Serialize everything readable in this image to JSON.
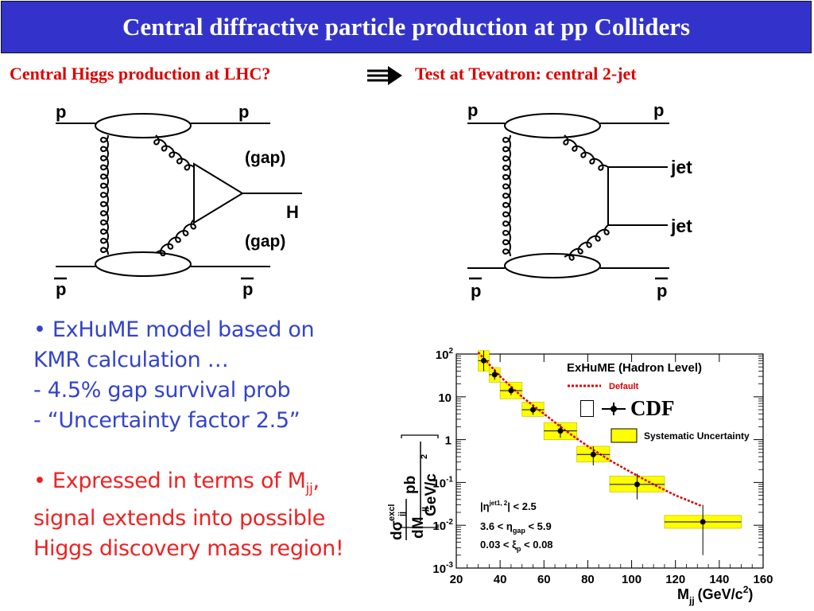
{
  "title": "Central diffractive particle production at pp Colliders",
  "headline_left": "Central Higgs production at LHC?",
  "headline_right": "Test at Tevatron: central 2-jet",
  "diagram_left": {
    "p_top_left": "p",
    "p_top_right": "p",
    "gap_top": "(gap)",
    "higgs": "H",
    "gap_bottom": "(gap)",
    "pbar_left": "p",
    "pbar_right": "p"
  },
  "diagram_right": {
    "p_top_left": "p",
    "p_top_right": "p",
    "jet1": "jet",
    "jet2": "jet",
    "pbar_left": "p",
    "pbar_right": "p"
  },
  "bullets": {
    "b1_l1": "• ExHuME model based on",
    "b1_l2": "KMR calculation …",
    "b1_l3": "- 4.5% gap survival prob",
    "b1_l4": "- “Uncertainty factor 2.5”",
    "b2_l1_pre": "• Expressed in terms of M",
    "b2_l1_sub": "jj",
    "b2_l1_post": ",",
    "b2_l2": "signal extends into possible",
    "b2_l3": "Higgs discovery mass region!"
  },
  "cdf_label": "CDF",
  "chart_data": {
    "type": "scatter",
    "log_y": true,
    "xlim": [
      20,
      160
    ],
    "ylim": [
      0.001,
      100
    ],
    "x_ticks": [
      "20",
      "40",
      "60",
      "80",
      "100",
      "120",
      "140",
      "160"
    ],
    "y_ticks": [
      {
        "base": "10",
        "exp": "2"
      },
      {
        "base": "10",
        "exp": ""
      },
      {
        "base": "1",
        "exp": ""
      },
      {
        "base": "10",
        "exp": "-1"
      },
      {
        "base": "10",
        "exp": "-2"
      },
      {
        "base": "10",
        "exp": "-3"
      }
    ],
    "xlabel": {
      "main": "M",
      "sub": "jj",
      "units": "(GeV/c",
      "sup": "2",
      "close": ")"
    },
    "ylabel": {
      "num": "dσ",
      "num_sup": "excl",
      "num_sub": "jj",
      "den": "dM",
      "den_sub": "jj",
      "unit_num": "pb",
      "unit_den": "GeV/c",
      "unit_sup": "2"
    },
    "model_title": "ExHuME (Hadron Level)",
    "model_legend": "Default",
    "syst_legend": "Systematic Uncertainty",
    "cuts": [
      {
        "pre": "|η",
        "sup": "jet1, 2",
        "sub": "",
        "post": "| < 2.5"
      },
      {
        "pre": "3.6 < η",
        "sup": "",
        "sub": "gap",
        "post": " < 5.9"
      },
      {
        "pre": "0.03 < ξ",
        "sup": "",
        "sub": "p",
        "post": " < 0.08"
      }
    ],
    "colors": {
      "data": "#000000",
      "band": "#ffff00",
      "band_edge": "#c8c800",
      "model": "#dd0000"
    },
    "points": [
      {
        "x": 32.5,
        "y": 70,
        "xerr": 2.5,
        "ylo": 40,
        "yhi": 120,
        "band_lo": 40,
        "band_hi": 120
      },
      {
        "x": 37.5,
        "y": 33,
        "xerr": 2.5,
        "ylo": 25,
        "yhi": 45,
        "band_lo": 22,
        "band_hi": 48
      },
      {
        "x": 45,
        "y": 14,
        "xerr": 5,
        "ylo": 11,
        "yhi": 18,
        "band_lo": 9,
        "band_hi": 22
      },
      {
        "x": 55,
        "y": 5.0,
        "xerr": 5,
        "ylo": 3.8,
        "yhi": 6.5,
        "band_lo": 3.5,
        "band_hi": 7.5
      },
      {
        "x": 67.5,
        "y": 1.6,
        "xerr": 7.5,
        "ylo": 1.1,
        "yhi": 2.3,
        "band_lo": 1.0,
        "band_hi": 2.5
      },
      {
        "x": 82.5,
        "y": 0.45,
        "xerr": 7.5,
        "ylo": 0.25,
        "yhi": 0.7,
        "band_lo": 0.3,
        "band_hi": 0.7
      },
      {
        "x": 102.5,
        "y": 0.09,
        "xerr": 12.5,
        "ylo": 0.04,
        "yhi": 0.16,
        "band_lo": 0.06,
        "band_hi": 0.14
      },
      {
        "x": 132.5,
        "y": 0.012,
        "xerr": 17.5,
        "ylo": 0.002,
        "yhi": 0.03,
        "band_lo": 0.0085,
        "band_hi": 0.017
      }
    ],
    "model_curve": [
      {
        "x": 30,
        "y": 110
      },
      {
        "x": 40,
        "y": 30
      },
      {
        "x": 50,
        "y": 10
      },
      {
        "x": 60,
        "y": 4
      },
      {
        "x": 70,
        "y": 1.6
      },
      {
        "x": 80,
        "y": 0.7
      },
      {
        "x": 90,
        "y": 0.33
      },
      {
        "x": 100,
        "y": 0.17
      },
      {
        "x": 110,
        "y": 0.09
      },
      {
        "x": 120,
        "y": 0.05
      },
      {
        "x": 132,
        "y": 0.028
      }
    ]
  }
}
